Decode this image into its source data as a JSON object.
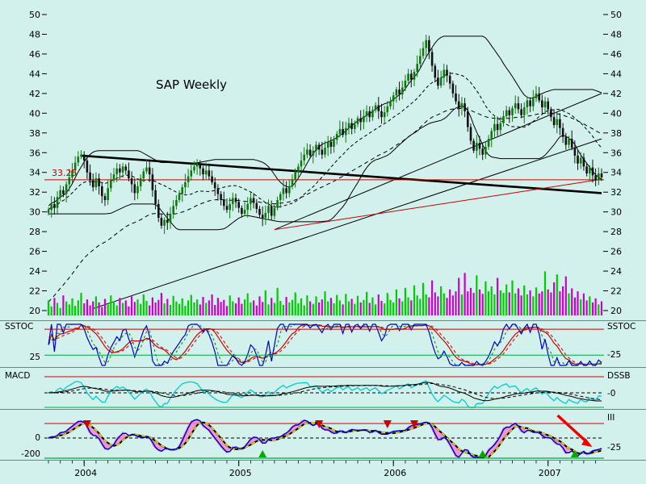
{
  "title": "SAP Weekly",
  "price_label": "33.25",
  "colors": {
    "background": "#d2f0ec",
    "red": "#cc0000",
    "green_line": "#00aa44",
    "up_candle": "#117711",
    "down_candle": "#111111",
    "vol_up": "#00cc00",
    "vol_down": "#cc00cc",
    "blue": "#0000cc",
    "cyan": "#00cccc",
    "yellow": "#ffee00",
    "pink_fill": "#f486c8"
  },
  "panel_labels": {
    "sstoc_left": "SSTOC",
    "sstoc_right": "SSTOC",
    "macd_left": "MACD",
    "macd_right": "DSSB",
    "bottom_right_name": "III"
  },
  "axes": {
    "price_ticks": [
      50,
      48,
      46,
      44,
      42,
      40,
      38,
      36,
      34,
      32,
      30,
      28,
      26,
      24,
      22,
      20
    ],
    "years": [
      {
        "label": "2004",
        "week": 12
      },
      {
        "label": "2005",
        "week": 64
      },
      {
        "label": "2006",
        "week": 116
      },
      {
        "label": "2007",
        "week": 168
      }
    ],
    "sstoc_left_tick": "25",
    "sstoc_right_tick": "-25",
    "macd_right_tick": "-0",
    "bottom_left_tick_zero": "0",
    "bottom_left_tick_min": "-200",
    "bottom_right_tick": "-25"
  },
  "chart_data": {
    "type": "candlestick",
    "title": "SAP Weekly",
    "ylim": [
      20,
      50
    ],
    "x_unit": "week",
    "panels": [
      "price+volume",
      "stochastic (SSTOC)",
      "macd/dssb",
      "momentum (III)"
    ],
    "closes": [
      30.2,
      30.8,
      30.4,
      31.5,
      32.2,
      31.8,
      32.8,
      33.5,
      34.2,
      35.0,
      35.6,
      35.8,
      35.2,
      34.0,
      33.2,
      32.5,
      33.4,
      32.6,
      31.6,
      31.2,
      32.4,
      33.2,
      33.8,
      34.4,
      34.0,
      34.6,
      34.2,
      33.4,
      32.8,
      31.9,
      32.6,
      33.4,
      34.1,
      34.5,
      33.8,
      32.2,
      30.8,
      29.4,
      28.6,
      29.2,
      28.9,
      29.8,
      30.6,
      31.2,
      31.8,
      32.5,
      33.0,
      33.6,
      34.2,
      34.6,
      34.9,
      34.4,
      33.8,
      34.2,
      33.6,
      33.0,
      32.4,
      31.8,
      31.2,
      30.6,
      30.2,
      30.8,
      31.4,
      31.0,
      30.4,
      29.8,
      30.2,
      30.8,
      31.4,
      30.9,
      30.3,
      29.7,
      29.4,
      29.9,
      30.6,
      29.6,
      30.4,
      31.2,
      31.8,
      32.4,
      31.9,
      32.6,
      33.3,
      34.0,
      34.6,
      35.2,
      35.8,
      36.3,
      35.7,
      36.2,
      36.8,
      36.3,
      35.8,
      36.5,
      37.1,
      36.6,
      37.3,
      37.9,
      38.4,
      37.8,
      38.5,
      39.0,
      38.4,
      38.9,
      39.5,
      39.1,
      39.7,
      40.2,
      39.6,
      40.3,
      40.8,
      40.2,
      39.6,
      40.1,
      40.7,
      41.2,
      41.8,
      42.4,
      41.9,
      42.6,
      43.3,
      44.0,
      43.4,
      44.2,
      45.0,
      45.8,
      46.6,
      47.4,
      46.2,
      44.8,
      43.6,
      42.8,
      43.6,
      44.4,
      43.8,
      43.0,
      42.0,
      41.2,
      40.5,
      41.0,
      40.2,
      38.6,
      37.2,
      36.2,
      37.0,
      36.4,
      35.8,
      36.6,
      37.4,
      38.2,
      38.9,
      38.3,
      39.0,
      39.7,
      40.3,
      39.8,
      40.5,
      41.0,
      40.4,
      39.8,
      40.6,
      41.3,
      40.7,
      41.5,
      42.0,
      41.3,
      40.6,
      41.2,
      40.4,
      39.6,
      38.8,
      39.4,
      38.5,
      37.6,
      36.8,
      37.4,
      36.5,
      35.7,
      34.9,
      35.5,
      34.6,
      33.9,
      34.5,
      33.7,
      33.2,
      33.9,
      33.5
    ],
    "volumes": [
      30,
      18,
      35,
      25,
      15,
      40,
      28,
      22,
      34,
      19,
      30,
      45,
      24,
      32,
      20,
      28,
      38,
      26,
      17,
      33,
      22,
      40,
      28,
      20,
      35,
      25,
      30,
      18,
      38,
      27,
      32,
      23,
      42,
      29,
      20,
      36,
      26,
      31,
      45,
      24,
      33,
      21,
      39,
      28,
      23,
      34,
      19,
      30,
      41,
      26,
      32,
      22,
      37,
      25,
      30,
      42,
      21,
      35,
      27,
      31,
      19,
      40,
      28,
      24,
      36,
      23,
      32,
      44,
      26,
      30,
      20,
      38,
      27,
      50,
      22,
      35,
      25,
      55,
      29,
      21,
      37,
      26,
      31,
      46,
      24,
      34,
      20,
      40,
      28,
      23,
      38,
      26,
      32,
      48,
      28,
      35,
      24,
      41,
      30,
      22,
      43,
      28,
      33,
      23,
      39,
      26,
      31,
      47,
      25,
      36,
      22,
      42,
      29,
      24,
      45,
      31,
      26,
      52,
      34,
      28,
      55,
      36,
      30,
      60,
      40,
      33,
      65,
      42,
      36,
      70,
      46,
      38,
      58,
      44,
      35,
      52,
      40,
      48,
      75,
      42,
      85,
      48,
      55,
      45,
      80,
      52,
      43,
      68,
      48,
      58,
      42,
      75,
      50,
      45,
      62,
      46,
      70,
      44,
      54,
      40,
      60,
      42,
      50,
      38,
      56,
      44,
      48,
      88,
      52,
      46,
      66,
      82,
      48,
      58,
      78,
      44,
      54,
      36,
      48,
      32,
      44,
      30,
      38,
      26,
      34,
      22,
      28
    ],
    "horizontal_price_line": 33.25,
    "trendlines": [
      {
        "w1": 11,
        "p1": 35.7,
        "w2": 186,
        "p2": 31.9,
        "color": "#000000",
        "width": 2.6
      },
      {
        "w1": 15,
        "p1": 20.2,
        "w2": 186,
        "p2": 37.4,
        "color": "#000000",
        "width": 1
      },
      {
        "w1": 76,
        "p1": 28.2,
        "w2": 186,
        "p2": 42.0,
        "color": "#000000",
        "width": 1
      },
      {
        "w1": 76,
        "p1": 28.2,
        "w2": 186,
        "p2": 33.3,
        "color": "#cc0000",
        "width": 1
      }
    ],
    "signals": {
      "sell_weeks": [
        13,
        91,
        114,
        123
      ],
      "buy_weeks": [
        72,
        146,
        177
      ]
    },
    "arrow": {
      "type": "down-right",
      "week": 181
    },
    "indicator_levels": {
      "sstoc_upper": 88,
      "sstoc_lower": 25,
      "momentum_zero": 0,
      "momentum_axis_min": -200
    }
  }
}
